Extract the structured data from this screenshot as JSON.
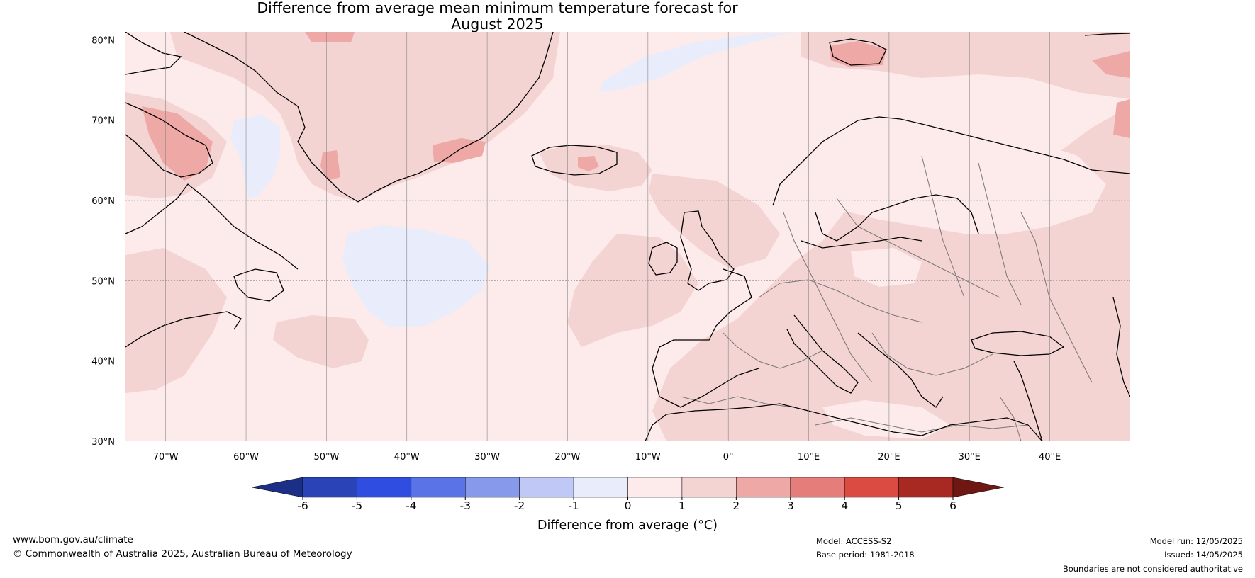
{
  "title": {
    "line1": "Difference from average mean minimum temperature forecast for",
    "line2": "August 2025"
  },
  "map": {
    "lat_labels": [
      "80°N",
      "70°N",
      "60°N",
      "50°N",
      "40°N",
      "30°N"
    ],
    "lon_labels": [
      "70°W",
      "60°W",
      "50°W",
      "40°W",
      "30°W",
      "20°W",
      "10°W",
      "0°",
      "10°E",
      "20°E",
      "30°E",
      "40°E"
    ],
    "colors": {
      "ocean_background": "#fcebea",
      "anomaly_0_1": "#fcebea",
      "anomaly_1_2": "#f4d3d3",
      "anomaly_2_3": "#eea8a6",
      "anomaly_neg1_0": "#e8ecfb",
      "coastline": "#000000",
      "borders": "#777777",
      "gridlines": "#888888"
    }
  },
  "colorbar": {
    "title": "Difference from average (°C)",
    "tick_labels": [
      "-6",
      "-5",
      "-4",
      "-3",
      "-2",
      "-1",
      "0",
      "1",
      "2",
      "3",
      "4",
      "5",
      "6"
    ],
    "colors": [
      "#1b2f86",
      "#2a44b8",
      "#2f4de0",
      "#5a73e6",
      "#8799eb",
      "#c0c8f5",
      "#e8ecfb",
      "#fcebea",
      "#f4d3d3",
      "#eea8a6",
      "#e57e7a",
      "#dc4b41",
      "#a82822",
      "#6e1713"
    ]
  },
  "footer": {
    "website": "www.bom.gov.au/climate",
    "copyright": "© Commonwealth of Australia 2025, Australian Bureau of Meteorology",
    "model": "Model: ACCESS-S2",
    "base_period": "Base period: 1981-2018",
    "model_run": "Model run: 12/05/2025",
    "issued": "Issued: 14/05/2025",
    "disclaimer": "Boundaries are not considered authoritative"
  }
}
